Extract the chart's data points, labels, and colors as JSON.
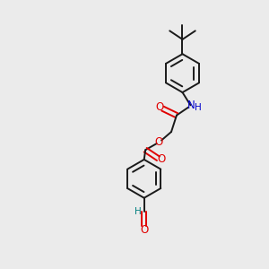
{
  "background_color": "#ebebeb",
  "bond_color": "#1a1a1a",
  "oxygen_color": "#e00000",
  "nitrogen_color": "#0000cc",
  "aldehyde_color": "#008080",
  "lw": 1.4,
  "fig_w": 3.0,
  "fig_h": 3.0,
  "dpi": 100,
  "xlim": [
    0,
    10
  ],
  "ylim": [
    0,
    10
  ]
}
